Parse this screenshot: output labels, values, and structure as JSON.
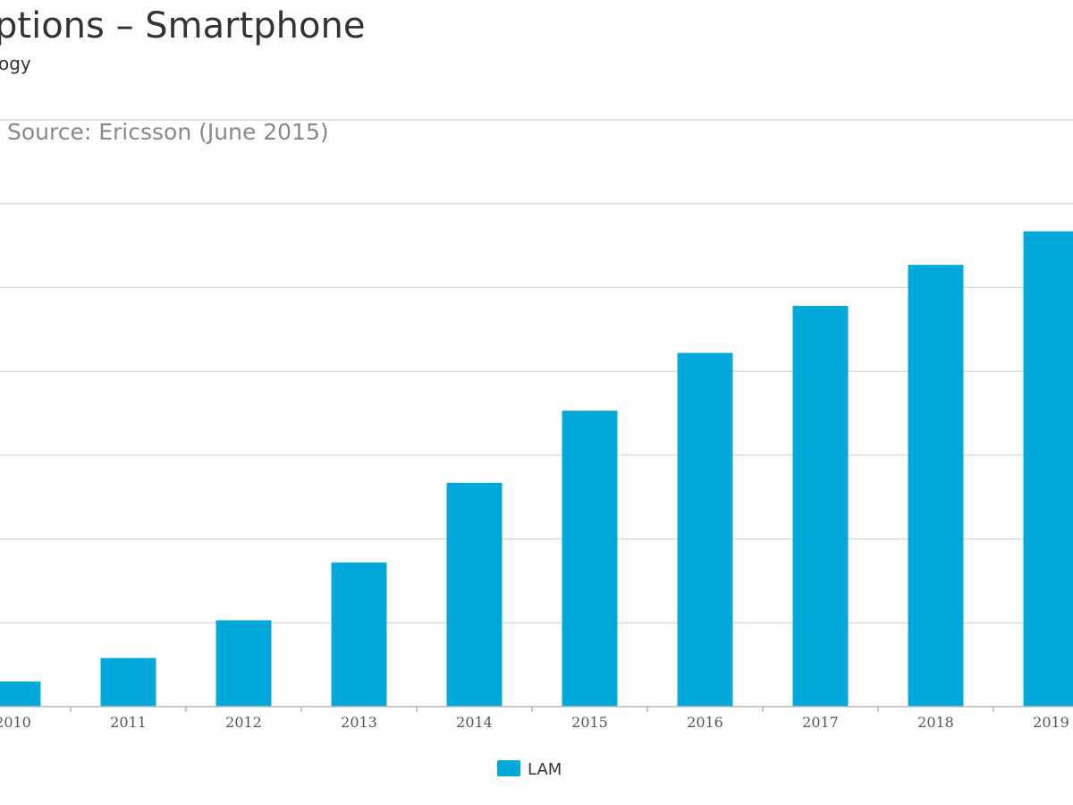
{
  "chart_data": {
    "type": "bar",
    "title": "ptions – Smartphone",
    "subtitle": "ogy",
    "source": "Source: Ericsson (June 2015)",
    "categories": [
      "2010",
      "2011",
      "2012",
      "2013",
      "2014",
      "2015",
      "2016",
      "2017",
      "2018",
      "2019"
    ],
    "series": [
      {
        "name": "LAM",
        "color": "#00a9da",
        "values": [
          30,
          58,
          103,
          172,
          267,
          353,
          422,
          478,
          527,
          567
        ]
      }
    ],
    "xlabel": "",
    "ylabel": "",
    "ylim": [
      0,
      700
    ],
    "grid": true,
    "legend": "bottom-center"
  }
}
